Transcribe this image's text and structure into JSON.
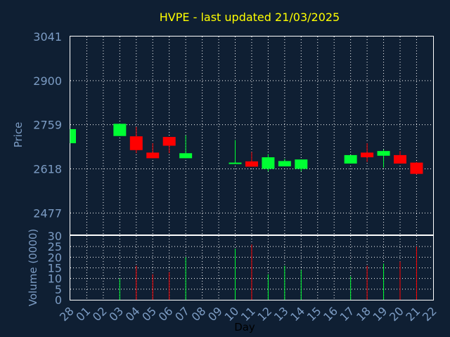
{
  "chart_data": {
    "type": "candlestick",
    "title": "HVPE - last updated 21/03/2025",
    "xlabel": "Day",
    "x_ticks": [
      "28",
      "01",
      "02",
      "03",
      "04",
      "05",
      "06",
      "07",
      "08",
      "09",
      "10",
      "11",
      "12",
      "13",
      "14",
      "15",
      "16",
      "17",
      "18",
      "19",
      "20",
      "21",
      "22"
    ],
    "price_panel": {
      "ylabel": "Price",
      "ylim": [
        2406,
        3041
      ],
      "y_ticks": [
        3041,
        2900,
        2759,
        2618,
        2477
      ]
    },
    "volume_panel": {
      "ylabel": "Volume (0000)",
      "ylim": [
        0,
        30
      ],
      "y_ticks": [
        30,
        25,
        20,
        15,
        10,
        5,
        0
      ]
    },
    "colors": {
      "up": "#00ff33",
      "down": "#ff0000",
      "background": "#0f1f33",
      "grid": "#ffffff",
      "title": "#ffff00",
      "ticks": "#7c9cc4"
    },
    "grid": true,
    "candles": [
      {
        "day": "28",
        "open": 2700,
        "close": 2745,
        "high": 2745,
        "low": 2700,
        "volume": 0
      },
      {
        "day": "03",
        "open": 2723,
        "close": 2762,
        "high": 2762,
        "low": 2723,
        "volume": 10
      },
      {
        "day": "04",
        "open": 2722,
        "close": 2678,
        "high": 2752,
        "low": 2668,
        "volume": 16
      },
      {
        "day": "05",
        "open": 2670,
        "close": 2652,
        "high": 2700,
        "low": 2652,
        "volume": 12
      },
      {
        "day": "06",
        "open": 2720,
        "close": 2692,
        "high": 2720,
        "low": 2668,
        "volume": 13
      },
      {
        "day": "07",
        "open": 2652,
        "close": 2668,
        "high": 2725,
        "low": 2652,
        "volume": 20
      },
      {
        "day": "10",
        "open": 2636,
        "close": 2638,
        "high": 2710,
        "low": 2636,
        "volume": 24
      },
      {
        "day": "11",
        "open": 2642,
        "close": 2625,
        "high": 2672,
        "low": 2625,
        "volume": 26
      },
      {
        "day": "12",
        "open": 2618,
        "close": 2655,
        "high": 2665,
        "low": 2610,
        "volume": 12
      },
      {
        "day": "13",
        "open": 2626,
        "close": 2643,
        "high": 2650,
        "low": 2626,
        "volume": 16
      },
      {
        "day": "14",
        "open": 2618,
        "close": 2648,
        "high": 2648,
        "low": 2610,
        "volume": 14
      },
      {
        "day": "17",
        "open": 2635,
        "close": 2662,
        "high": 2662,
        "low": 2635,
        "volume": 11
      },
      {
        "day": "18",
        "open": 2670,
        "close": 2655,
        "high": 2700,
        "low": 2640,
        "volume": 16
      },
      {
        "day": "19",
        "open": 2660,
        "close": 2675,
        "high": 2680,
        "low": 2622,
        "volume": 17
      },
      {
        "day": "20",
        "open": 2662,
        "close": 2635,
        "high": 2675,
        "low": 2635,
        "volume": 18
      },
      {
        "day": "21",
        "open": 2638,
        "close": 2602,
        "high": 2640,
        "low": 2600,
        "volume": 25
      }
    ]
  }
}
